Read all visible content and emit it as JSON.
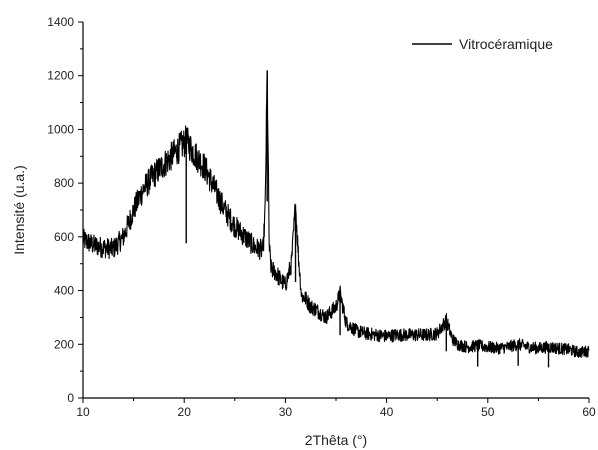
{
  "chart_data": {
    "type": "line",
    "title": "",
    "xlabel": "2Thêta (°)",
    "ylabel": "Intensité (u.a.)",
    "xlim": [
      10,
      60
    ],
    "ylim": [
      0,
      1400
    ],
    "x_ticks": [
      "10",
      "20",
      "30",
      "40",
      "50",
      "60"
    ],
    "y_ticks": [
      "0",
      "200",
      "400",
      "600",
      "800",
      "1000",
      "1200",
      "1400"
    ],
    "grid": false,
    "legend_position": "top-right",
    "series": [
      {
        "name": "Vitrocéramique",
        "color": "#000000",
        "x": [
          10,
          11,
          12,
          13,
          14,
          15,
          16,
          17,
          18,
          19,
          20,
          20.2,
          21,
          22,
          23,
          24,
          25,
          26,
          27,
          27.8,
          28.0,
          28.2,
          28.4,
          28.6,
          29,
          29.5,
          30,
          30.6,
          31.0,
          31.3,
          31.6,
          32,
          32.5,
          33,
          34,
          35,
          35.4,
          36,
          37,
          38,
          39,
          40,
          41,
          42,
          43,
          44,
          45,
          45.9,
          46.5,
          47,
          48,
          49,
          50,
          51,
          52,
          53,
          54,
          55,
          56,
          57,
          58,
          59,
          60
        ],
        "y": [
          590,
          570,
          560,
          555,
          600,
          700,
          780,
          830,
          870,
          910,
          950,
          960,
          910,
          860,
          780,
          700,
          640,
          600,
          560,
          550,
          700,
          1220,
          560,
          480,
          470,
          440,
          420,
          500,
          720,
          520,
          380,
          370,
          340,
          330,
          300,
          340,
          390,
          280,
          250,
          240,
          235,
          230,
          235,
          235,
          235,
          235,
          240,
          290,
          220,
          200,
          190,
          195,
          190,
          185,
          190,
          200,
          190,
          185,
          190,
          185,
          180,
          170,
          175
        ]
      }
    ]
  }
}
